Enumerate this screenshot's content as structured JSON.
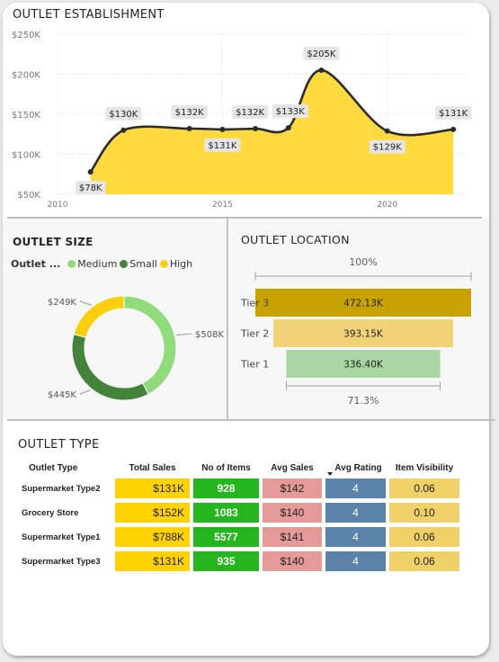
{
  "establishment": {
    "title": "OUTLET ESTABLISHMENT",
    "chart_data": {
      "type": "area",
      "title": "OUTLET ESTABLISHMENT",
      "x": [
        2011,
        2012,
        2014,
        2015,
        2016,
        2017,
        2018,
        2020,
        2022
      ],
      "values": [
        78,
        130,
        132,
        131,
        132,
        133,
        205,
        129,
        131
      ],
      "labels": [
        "$78K",
        "$130K",
        "$132K",
        "$131K",
        "$132K",
        "$133K",
        "$205K",
        "$129K",
        "$131K"
      ],
      "y_ticks": [
        "$50K",
        "$100K",
        "$150K",
        "$200K",
        "$250K"
      ],
      "y_tick_values": [
        50,
        100,
        150,
        200,
        250
      ],
      "x_ticks": [
        "2010",
        "2015",
        "2020"
      ],
      "x_tick_values": [
        2010,
        2015,
        2020
      ],
      "xlim": [
        2010,
        2022.2
      ],
      "ylim": [
        50,
        250
      ],
      "grid": true,
      "fill_color": "#ffd93d",
      "line_color": "#2b2b2b"
    }
  },
  "size": {
    "title": "OUTLET SIZE",
    "legend_title": "Outlet ...",
    "legend": [
      {
        "label": "Medium",
        "color": "#90dc7d"
      },
      {
        "label": "Small",
        "color": "#44833a"
      },
      {
        "label": "High",
        "color": "#fccf0e"
      }
    ],
    "chart_data": {
      "type": "pie",
      "categories": [
        "Medium",
        "Small",
        "High"
      ],
      "values": [
        508,
        445,
        249
      ],
      "labels": [
        "$508K",
        "$445K",
        "$249K"
      ],
      "colors": [
        "#90dc7d",
        "#44833a",
        "#fccf0e"
      ]
    }
  },
  "location": {
    "title": "OUTLET LOCATION",
    "top_label": "100%",
    "bottom_label": "71.3%",
    "chart_data": {
      "type": "bar",
      "categories": [
        "Tier 3",
        "Tier 2",
        "Tier 1"
      ],
      "values": [
        472.13,
        393.15,
        336.4
      ],
      "labels": [
        "472.13K",
        "393.15K",
        "336.40K"
      ],
      "colors": [
        "#c8a200",
        "#f0d278",
        "#a9d6a2"
      ]
    }
  },
  "outlet_type": {
    "title": "OUTLET TYPE",
    "headers": [
      "Outlet Type",
      "Total Sales",
      "No of Items",
      "Avg Sales",
      "Avg Rating",
      "Item Visibility"
    ],
    "rows": [
      [
        "Supermarket Type2",
        "$131K",
        "928",
        "$142",
        "4",
        "0.06"
      ],
      [
        "Grocery Store",
        "$152K",
        "1083",
        "$140",
        "4",
        "0.10"
      ],
      [
        "Supermarket Type1",
        "$788K",
        "5577",
        "$141",
        "4",
        "0.06"
      ],
      [
        "Supermarket Type3",
        "$131K",
        "935",
        "$140",
        "4",
        "0.06"
      ]
    ]
  }
}
